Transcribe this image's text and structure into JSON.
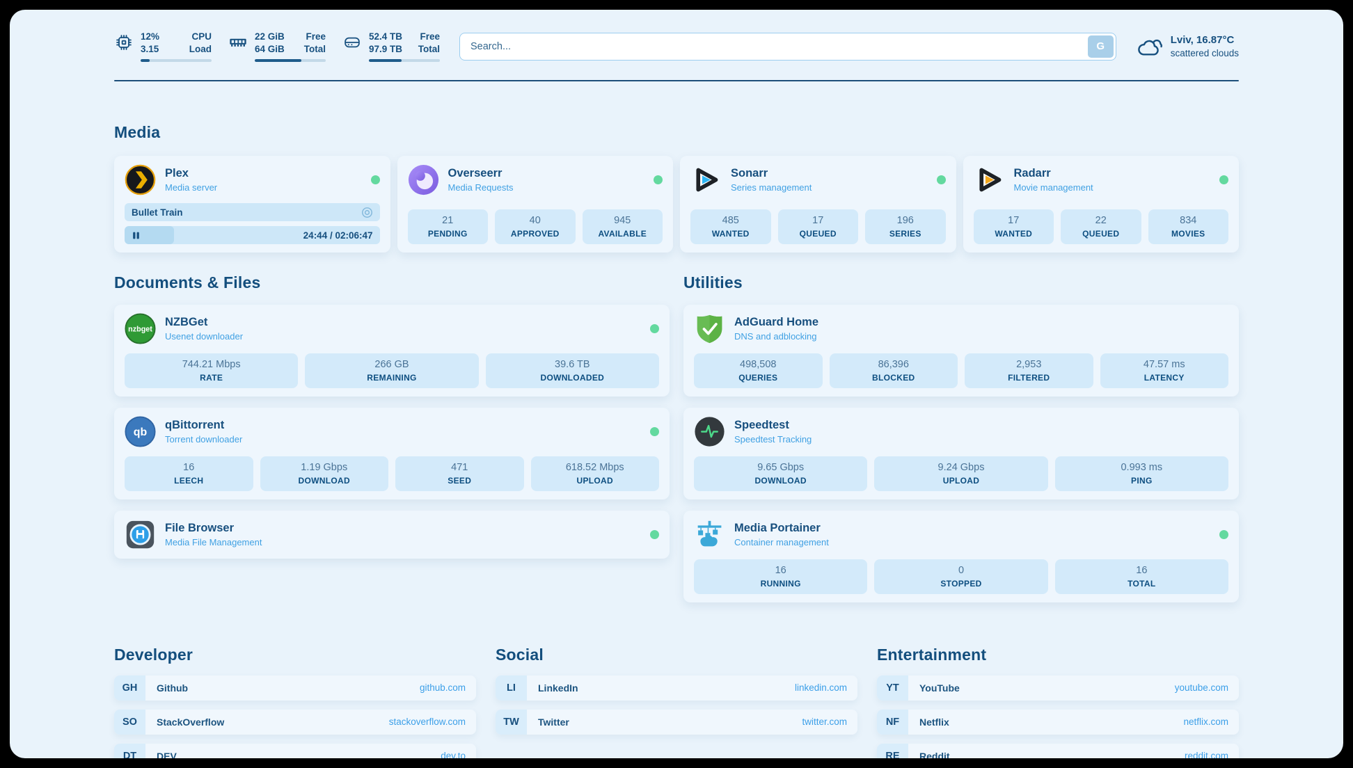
{
  "colors": {
    "online_green": "#63d99f",
    "accent_navy": "#17507f",
    "link_blue": "#3b9fe8",
    "pill_blue": "#d3eafa"
  },
  "topbar": {
    "system_stats": [
      {
        "icon": "cpu-icon",
        "values": [
          "12%",
          "3.15"
        ],
        "labels": [
          "CPU",
          "Load"
        ],
        "progress_pct": 13
      },
      {
        "icon": "ram-icon",
        "values": [
          "22 GiB",
          "64 GiB"
        ],
        "labels": [
          "Free",
          "Total"
        ],
        "progress_pct": 66
      },
      {
        "icon": "disk-icon",
        "values": [
          "52.4 TB",
          "97.9 TB"
        ],
        "labels": [
          "Free",
          "Total"
        ],
        "progress_pct": 46
      }
    ],
    "search": {
      "placeholder": "Search...",
      "button_label": "G"
    },
    "weather": {
      "icon": "cloud-icon",
      "line1": "Lviv, 16.87°C",
      "line2": "scattered clouds"
    }
  },
  "media_section": {
    "title": "Media",
    "cards": [
      {
        "slug": "plex",
        "icon": "plex-icon",
        "name": "Plex",
        "subtitle": "Media server",
        "online": true,
        "player": {
          "title": "Bullet Train",
          "media_icon": "video-icon",
          "state_icon": "pause-icon",
          "progress_pct": 19.5,
          "time": "24:44 / 02:06:47"
        }
      },
      {
        "slug": "overseerr",
        "icon": "overseerr-icon",
        "name": "Overseerr",
        "subtitle": "Media Requests",
        "online": true,
        "stats": [
          {
            "value": "21",
            "label": "PENDING"
          },
          {
            "value": "40",
            "label": "APPROVED"
          },
          {
            "value": "945",
            "label": "AVAILABLE"
          }
        ]
      },
      {
        "slug": "sonarr",
        "icon": "sonarr-icon",
        "name": "Sonarr",
        "subtitle": "Series management",
        "online": true,
        "stats": [
          {
            "value": "485",
            "label": "WANTED"
          },
          {
            "value": "17",
            "label": "QUEUED"
          },
          {
            "value": "196",
            "label": "SERIES"
          }
        ]
      },
      {
        "slug": "radarr",
        "icon": "radarr-icon",
        "name": "Radarr",
        "subtitle": "Movie management",
        "online": true,
        "stats": [
          {
            "value": "17",
            "label": "WANTED"
          },
          {
            "value": "22",
            "label": "QUEUED"
          },
          {
            "value": "834",
            "label": "MOVIES"
          }
        ]
      }
    ]
  },
  "left_column": {
    "title": "Documents & Files",
    "cards": [
      {
        "slug": "nzbget",
        "icon": "nzbget-icon",
        "name": "NZBGet",
        "subtitle": "Usenet downloader",
        "online": true,
        "stats": [
          {
            "value": "744.21 Mbps",
            "label": "RATE"
          },
          {
            "value": "266 GB",
            "label": "REMAINING"
          },
          {
            "value": "39.6 TB",
            "label": "DOWNLOADED"
          }
        ]
      },
      {
        "slug": "qbittorrent",
        "icon": "qbittorrent-icon",
        "name": "qBittorrent",
        "subtitle": "Torrent downloader",
        "online": true,
        "stats": [
          {
            "value": "16",
            "label": "LEECH"
          },
          {
            "value": "1.19 Gbps",
            "label": "DOWNLOAD"
          },
          {
            "value": "471",
            "label": "SEED"
          },
          {
            "value": "618.52 Mbps",
            "label": "UPLOAD"
          }
        ]
      },
      {
        "slug": "file-browser",
        "icon": "filebrowser-icon",
        "name": "File Browser",
        "subtitle": "Media File Management",
        "online": true
      }
    ]
  },
  "right_column": {
    "title": "Utilities",
    "cards": [
      {
        "slug": "adguard-home",
        "icon": "adguard-icon",
        "name": "AdGuard Home",
        "subtitle": "DNS and adblocking",
        "online": false,
        "stats": [
          {
            "value": "498,508",
            "label": "QUERIES"
          },
          {
            "value": "86,396",
            "label": "BLOCKED"
          },
          {
            "value": "2,953",
            "label": "FILTERED"
          },
          {
            "value": "47.57 ms",
            "label": "LATENCY"
          }
        ]
      },
      {
        "slug": "speedtest",
        "icon": "speedtest-icon",
        "name": "Speedtest",
        "subtitle": "Speedtest Tracking",
        "online": false,
        "stats": [
          {
            "value": "9.65 Gbps",
            "label": "DOWNLOAD"
          },
          {
            "value": "9.24 Gbps",
            "label": "UPLOAD"
          },
          {
            "value": "0.993 ms",
            "label": "PING"
          }
        ]
      },
      {
        "slug": "media-portainer",
        "icon": "portainer-icon",
        "name": "Media Portainer",
        "subtitle": "Container management",
        "online": true,
        "stats": [
          {
            "value": "16",
            "label": "RUNNING"
          },
          {
            "value": "0",
            "label": "STOPPED"
          },
          {
            "value": "16",
            "label": "TOTAL"
          }
        ]
      }
    ]
  },
  "bookmark_sections": [
    {
      "title": "Developer",
      "items": [
        {
          "abbr": "GH",
          "name": "Github",
          "url": "github.com"
        },
        {
          "abbr": "SO",
          "name": "StackOverflow",
          "url": "stackoverflow.com"
        },
        {
          "abbr": "DT",
          "name": "DEV",
          "url": "dev.to"
        }
      ]
    },
    {
      "title": "Social",
      "items": [
        {
          "abbr": "LI",
          "name": "LinkedIn",
          "url": "linkedin.com"
        },
        {
          "abbr": "TW",
          "name": "Twitter",
          "url": "twitter.com"
        }
      ]
    },
    {
      "title": "Entertainment",
      "items": [
        {
          "abbr": "YT",
          "name": "YouTube",
          "url": "youtube.com"
        },
        {
          "abbr": "NF",
          "name": "Netflix",
          "url": "netflix.com"
        },
        {
          "abbr": "RE",
          "name": "Reddit",
          "url": "reddit.com"
        }
      ]
    }
  ]
}
